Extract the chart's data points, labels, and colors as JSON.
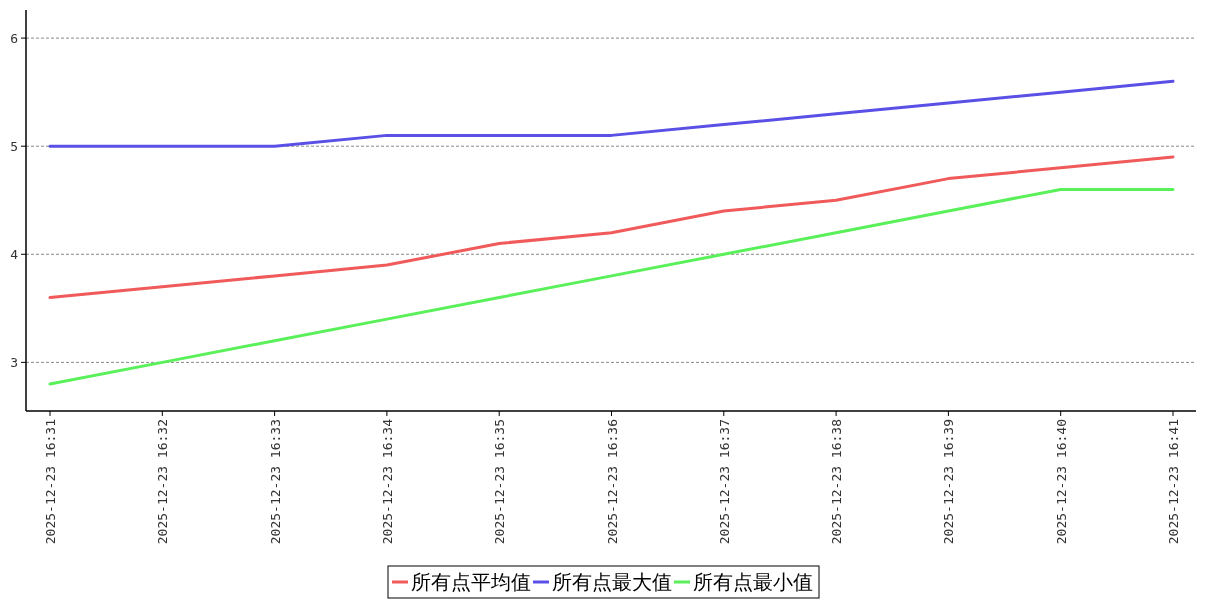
{
  "chart_data": {
    "type": "line",
    "categories": [
      "2025-12-23 16:31",
      "2025-12-23 16:32",
      "2025-12-23 16:33",
      "2025-12-23 16:34",
      "2025-12-23 16:35",
      "2025-12-23 16:36",
      "2025-12-23 16:37",
      "2025-12-23 16:38",
      "2025-12-23 16:39",
      "2025-12-23 16:40",
      "2025-12-23 16:41"
    ],
    "series": [
      {
        "name": "所有点平均值",
        "color": "#f05a5a",
        "values": [
          3.6,
          3.7,
          3.8,
          3.9,
          4.1,
          4.2,
          4.4,
          4.5,
          4.7,
          4.8,
          4.9
        ]
      },
      {
        "name": "所有点最大值",
        "color": "#5a50e6",
        "values": [
          5.0,
          5.0,
          5.0,
          5.1,
          5.1,
          5.1,
          5.2,
          5.3,
          5.4,
          5.5,
          5.6
        ]
      },
      {
        "name": "所有点最小值",
        "color": "#5af05a",
        "values": [
          2.8,
          3.0,
          3.2,
          3.4,
          3.6,
          3.8,
          4.0,
          4.2,
          4.4,
          4.6,
          4.6
        ]
      }
    ],
    "ylim": [
      2.55,
      6.26
    ],
    "yticks": [
      3,
      4,
      5,
      6
    ],
    "grid": "y",
    "legend": "bottom"
  }
}
